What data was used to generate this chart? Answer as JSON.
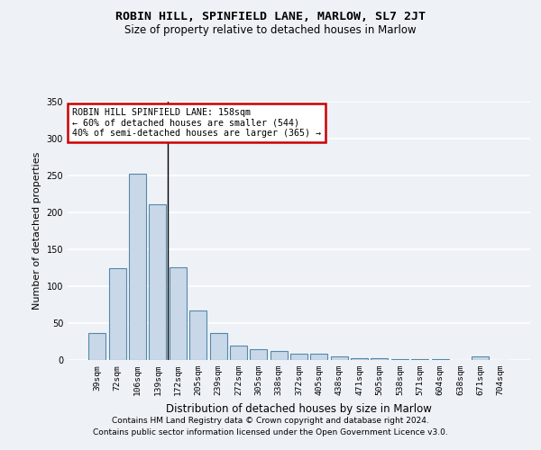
{
  "title": "ROBIN HILL, SPINFIELD LANE, MARLOW, SL7 2JT",
  "subtitle": "Size of property relative to detached houses in Marlow",
  "xlabel": "Distribution of detached houses by size in Marlow",
  "ylabel": "Number of detached properties",
  "categories": [
    "39sqm",
    "72sqm",
    "106sqm",
    "139sqm",
    "172sqm",
    "205sqm",
    "239sqm",
    "272sqm",
    "305sqm",
    "338sqm",
    "372sqm",
    "405sqm",
    "438sqm",
    "471sqm",
    "505sqm",
    "538sqm",
    "571sqm",
    "604sqm",
    "638sqm",
    "671sqm",
    "704sqm"
  ],
  "values": [
    37,
    124,
    252,
    211,
    125,
    67,
    36,
    20,
    15,
    12,
    9,
    9,
    5,
    3,
    2,
    1,
    1,
    1,
    0,
    5,
    0
  ],
  "bar_color": "#c8d8e8",
  "bar_edge_color": "#5588aa",
  "marker_label": "ROBIN HILL SPINFIELD LANE: 158sqm",
  "annotation_line1": "← 60% of detached houses are smaller (544)",
  "annotation_line2": "40% of semi-detached houses are larger (365) →",
  "annotation_box_color": "#ffffff",
  "annotation_box_edge": "#cc0000",
  "vline_color": "#000000",
  "ylim": [
    0,
    350
  ],
  "yticks": [
    0,
    50,
    100,
    150,
    200,
    250,
    300,
    350
  ],
  "background_color": "#eef2f7",
  "grid_color": "#ffffff",
  "footer_line1": "Contains HM Land Registry data © Crown copyright and database right 2024.",
  "footer_line2": "Contains public sector information licensed under the Open Government Licence v3.0."
}
